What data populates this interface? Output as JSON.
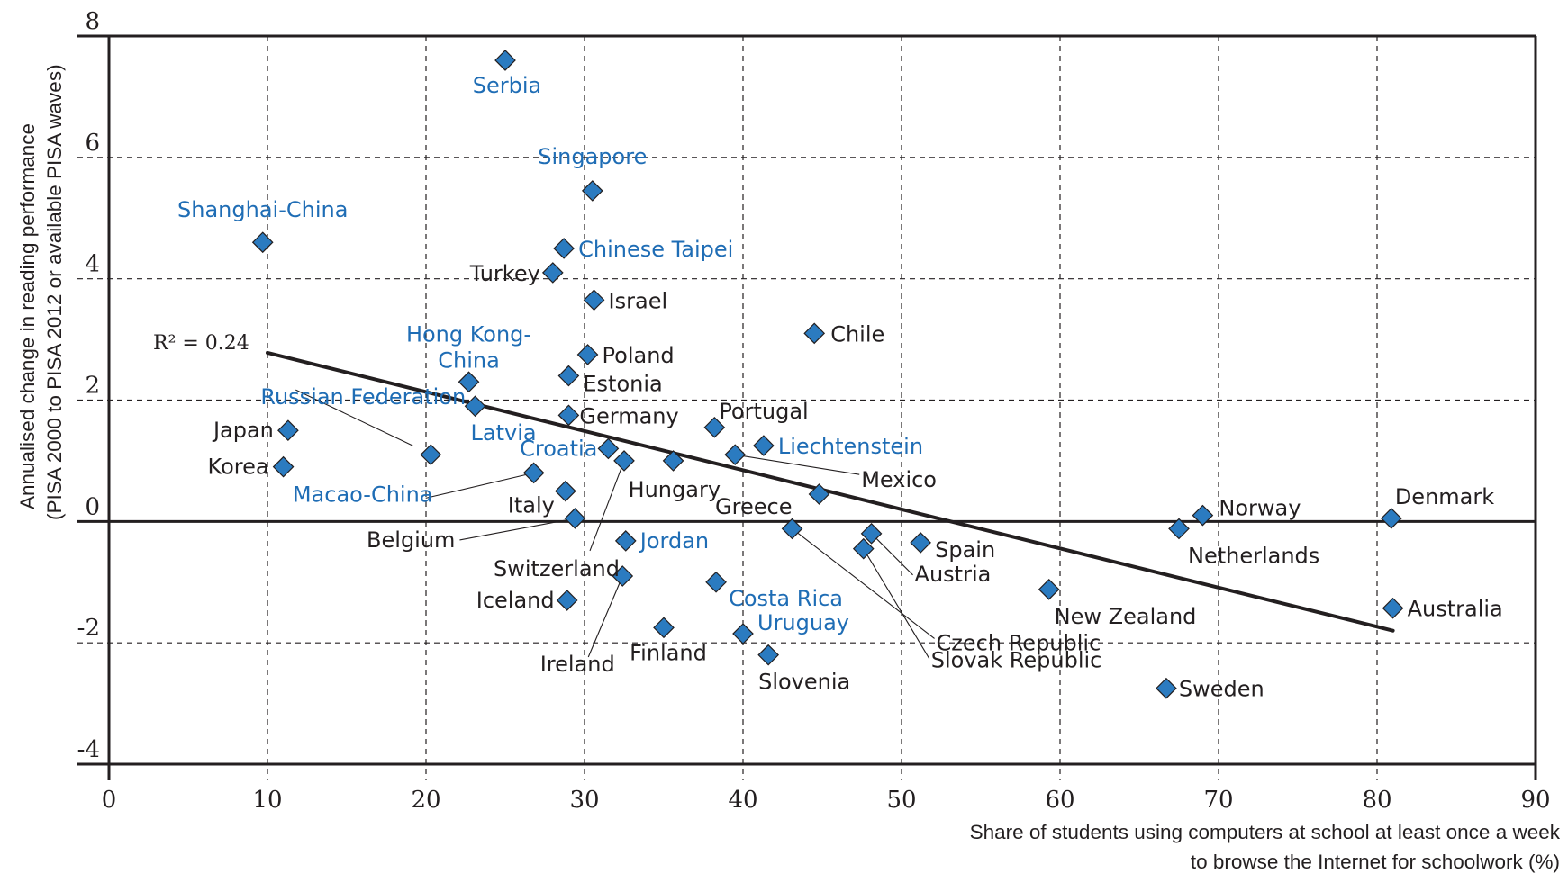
{
  "chart_data": {
    "type": "scatter",
    "title": "",
    "xlabel_lines": [
      "Share of students using computers at school at least once a week",
      "to browse the Internet for schoolwork (%)"
    ],
    "ylabel_lines": [
      "Annualised change in reading performance",
      "(PISA 2000 to PISA 2012 or available PISA waves)"
    ],
    "xlim": [
      0,
      90
    ],
    "ylim": [
      -4,
      8
    ],
    "xticks": [
      0,
      10,
      20,
      30,
      40,
      50,
      60,
      70,
      80,
      90
    ],
    "yticks": [
      -4,
      -2,
      0,
      2,
      4,
      6,
      8
    ],
    "ytick_labels": [
      "-4",
      "-2",
      "0",
      "2",
      "4",
      "6",
      "8"
    ],
    "grid": true,
    "marker": "diamond",
    "colors": {
      "marker_fill": "#2b7bc0",
      "marker_edge": "#231f20",
      "label_oecd": "#231f20",
      "label_partner": "#1f6db5",
      "trend": "#231f20"
    },
    "trendline": {
      "r2_label": "R² = 0.24",
      "from": [
        10,
        2.78
      ],
      "to": [
        81,
        -1.8
      ]
    },
    "points": [
      {
        "name": "Serbia",
        "x": 25.0,
        "y": 7.6,
        "partner": true
      },
      {
        "name": "Singapore",
        "x": 30.5,
        "y": 5.45,
        "partner": true
      },
      {
        "name": "Shanghai-China",
        "x": 9.7,
        "y": 4.6,
        "partner": true
      },
      {
        "name": "Chinese Taipei",
        "x": 28.7,
        "y": 4.5,
        "partner": true
      },
      {
        "name": "Turkey",
        "x": 28.0,
        "y": 4.1,
        "partner": false
      },
      {
        "name": "Israel",
        "x": 30.6,
        "y": 3.65,
        "partner": false
      },
      {
        "name": "Chile",
        "x": 44.5,
        "y": 3.1,
        "partner": false
      },
      {
        "name": "Poland",
        "x": 30.2,
        "y": 2.75,
        "partner": false
      },
      {
        "name": "Estonia",
        "x": 29.0,
        "y": 2.4,
        "partner": false
      },
      {
        "name": "Hong Kong-China",
        "x": 22.7,
        "y": 2.3,
        "partner": true
      },
      {
        "name": "Latvia",
        "x": 23.1,
        "y": 1.9,
        "partner": true
      },
      {
        "name": "Germany",
        "x": 29.0,
        "y": 1.75,
        "partner": false
      },
      {
        "name": "Portugal",
        "x": 38.2,
        "y": 1.55,
        "partner": false
      },
      {
        "name": "Japan",
        "x": 11.3,
        "y": 1.5,
        "partner": false
      },
      {
        "name": "Liechtenstein",
        "x": 41.3,
        "y": 1.25,
        "partner": true
      },
      {
        "name": "Croatia",
        "x": 31.5,
        "y": 1.2,
        "partner": true
      },
      {
        "name": "Russian Federation",
        "x": 20.3,
        "y": 1.1,
        "partner": true
      },
      {
        "name": "Mexico",
        "x": 39.5,
        "y": 1.1,
        "partner": false
      },
      {
        "name": "Switzerland",
        "x": 32.5,
        "y": 1.0,
        "partner": false
      },
      {
        "name": "Hungary",
        "x": 35.6,
        "y": 1.0,
        "partner": false
      },
      {
        "name": "Korea",
        "x": 11.0,
        "y": 0.9,
        "partner": false
      },
      {
        "name": "Macao-China",
        "x": 26.8,
        "y": 0.8,
        "partner": true
      },
      {
        "name": "Italy",
        "x": 28.8,
        "y": 0.5,
        "partner": false
      },
      {
        "name": "Greece",
        "x": 44.8,
        "y": 0.45,
        "partner": false
      },
      {
        "name": "Norway",
        "x": 69.0,
        "y": 0.1,
        "partner": false
      },
      {
        "name": "Denmark",
        "x": 80.9,
        "y": 0.05,
        "partner": false
      },
      {
        "name": "Belgium",
        "x": 29.4,
        "y": 0.05,
        "partner": false
      },
      {
        "name": "Netherlands",
        "x": 67.5,
        "y": -0.12,
        "partner": false
      },
      {
        "name": "Czech Republic",
        "x": 43.1,
        "y": -0.12,
        "partner": false
      },
      {
        "name": "Austria",
        "x": 48.1,
        "y": -0.2,
        "partner": false
      },
      {
        "name": "Jordan",
        "x": 32.6,
        "y": -0.32,
        "partner": true
      },
      {
        "name": "Spain",
        "x": 51.2,
        "y": -0.35,
        "partner": false
      },
      {
        "name": "Slovak Republic",
        "x": 47.6,
        "y": -0.45,
        "partner": false
      },
      {
        "name": "Ireland",
        "x": 32.4,
        "y": -0.9,
        "partner": false
      },
      {
        "name": "Costa Rica",
        "x": 38.3,
        "y": -1.0,
        "partner": true
      },
      {
        "name": "New Zealand",
        "x": 59.3,
        "y": -1.12,
        "partner": false
      },
      {
        "name": "Iceland",
        "x": 28.9,
        "y": -1.3,
        "partner": false
      },
      {
        "name": "Australia",
        "x": 81.0,
        "y": -1.43,
        "partner": false
      },
      {
        "name": "Finland",
        "x": 35.0,
        "y": -1.75,
        "partner": false
      },
      {
        "name": "Uruguay",
        "x": 40.0,
        "y": -1.85,
        "partner": true
      },
      {
        "name": "Slovenia",
        "x": 41.6,
        "y": -2.2,
        "partner": false
      },
      {
        "name": "Sweden",
        "x": 66.7,
        "y": -2.75,
        "partner": false
      }
    ]
  }
}
